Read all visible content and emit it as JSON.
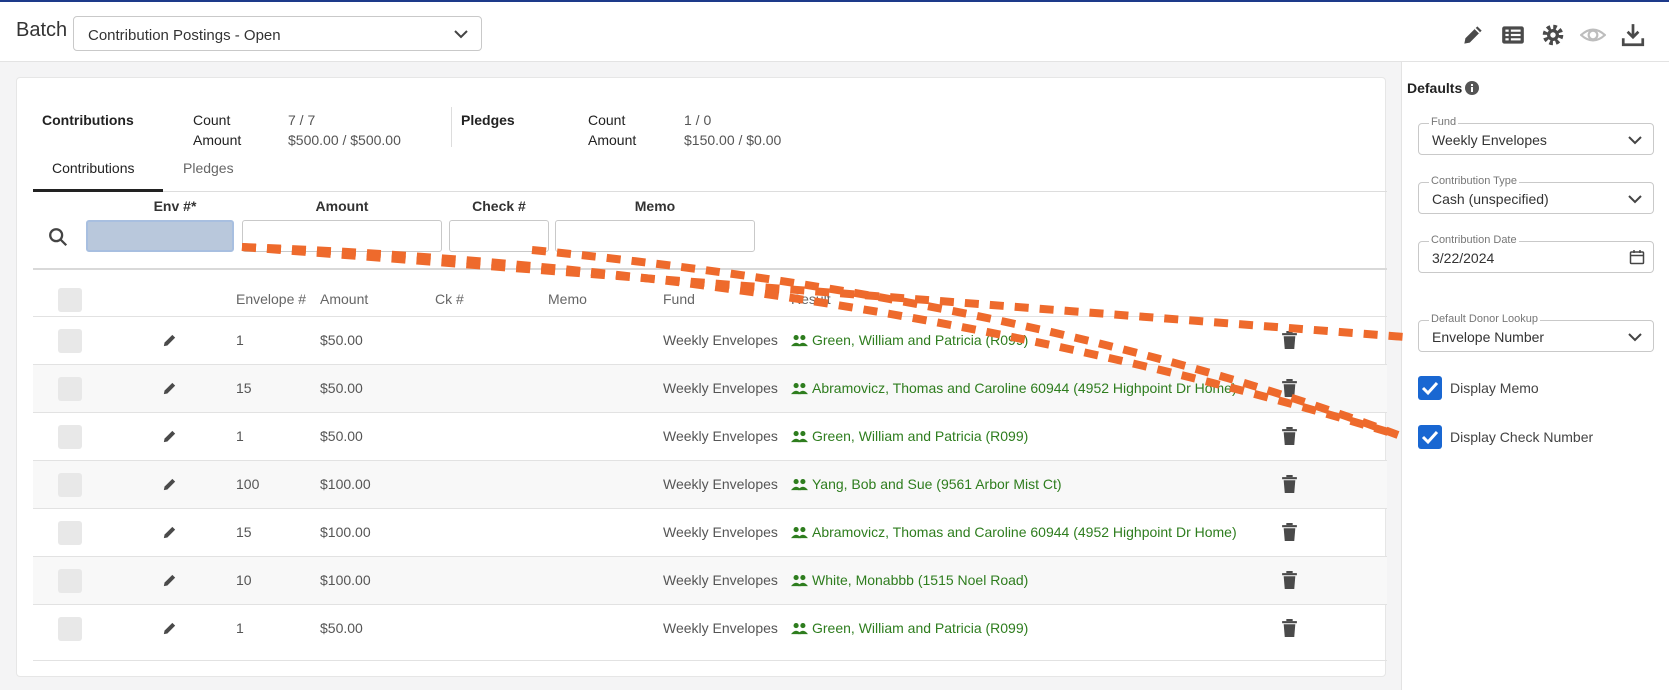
{
  "header": {
    "batch_label": "Batch",
    "batch_value": "Contribution Postings - Open",
    "toolbar_icons": [
      "pencil-icon",
      "list-icon",
      "gear-icon",
      "eye-icon",
      "download-icon"
    ]
  },
  "summary": {
    "contributions_label": "Contributions",
    "pledges_label": "Pledges",
    "count_label": "Count",
    "amount_label": "Amount",
    "contributions_count": "7 / 7",
    "contributions_amount": "$500.00 / $500.00",
    "pledges_count": "1 / 0",
    "pledges_amount": "$150.00 / $0.00"
  },
  "tabs": [
    {
      "label": "Contributions",
      "active": true
    },
    {
      "label": "Pledges",
      "active": false
    }
  ],
  "entry": {
    "env_label": "Env #*",
    "amount_label": "Amount",
    "check_label": "Check #",
    "memo_label": "Memo"
  },
  "table": {
    "headers": {
      "envelope": "Envelope #",
      "amount": "Amount",
      "check": "Ck #",
      "memo": "Memo",
      "fund": "Fund",
      "result": "Result"
    },
    "rows": [
      {
        "envelope": "1",
        "amount": "$50.00",
        "fund": "Weekly Envelopes",
        "result": "Green, William and Patricia (R099)"
      },
      {
        "envelope": "15",
        "amount": "$50.00",
        "fund": "Weekly Envelopes",
        "result": "Abramovicz, Thomas and Caroline 60944 (4952 Highpoint Dr Home)"
      },
      {
        "envelope": "1",
        "amount": "$50.00",
        "fund": "Weekly Envelopes",
        "result": "Green, William and Patricia (R099)"
      },
      {
        "envelope": "100",
        "amount": "$100.00",
        "fund": "Weekly Envelopes",
        "result": "Yang, Bob and Sue (9561 Arbor Mist Ct)"
      },
      {
        "envelope": "15",
        "amount": "$100.00",
        "fund": "Weekly Envelopes",
        "result": "Abramovicz, Thomas and Caroline 60944 (4952 Highpoint Dr Home)"
      },
      {
        "envelope": "10",
        "amount": "$100.00",
        "fund": "Weekly Envelopes",
        "result": "White, Monabbb (1515 Noel Road)"
      },
      {
        "envelope": "1",
        "amount": "$50.00",
        "fund": "Weekly Envelopes",
        "result": "Green, William and Patricia (R099)"
      }
    ]
  },
  "defaults": {
    "title": "Defaults",
    "fund_label": "Fund",
    "fund_value": "Weekly Envelopes",
    "type_label": "Contribution Type",
    "type_value": "Cash (unspecified)",
    "date_label": "Contribution Date",
    "date_value": "3/22/2024",
    "lookup_label": "Default Donor Lookup",
    "lookup_value": "Envelope Number",
    "display_memo": "Display Memo",
    "display_check": "Display Check Number"
  },
  "colors": {
    "accent": "#1967d2",
    "result_green": "#2e7d1e",
    "annotation_orange": "#ee6a2c",
    "top_line": "#1d3a8a"
  }
}
